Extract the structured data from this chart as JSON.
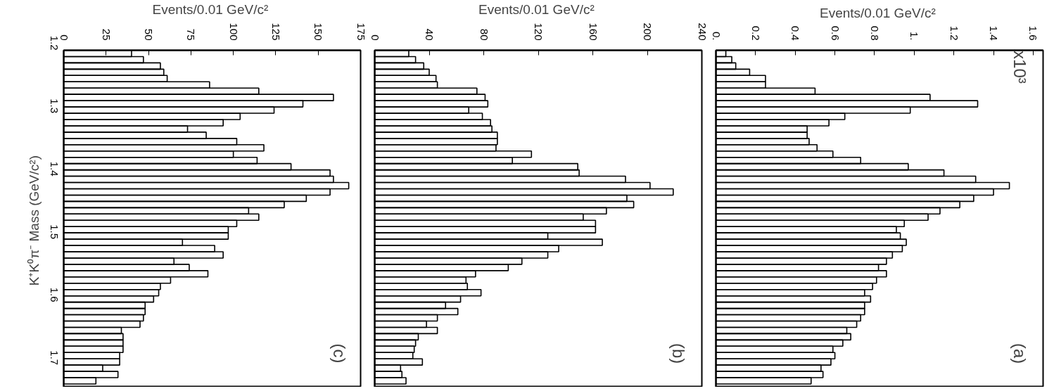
{
  "chart_data": [
    {
      "type": "histogram",
      "orientation": "horizontal",
      "xlabel": "Events/0.01  GeV/c²",
      "ylabel": "K⁺K⁰π⁻ Mass  (GeV/c²)",
      "annotations": [
        "(c)"
      ],
      "bins": [
        1.2,
        1.21,
        1.22,
        1.23,
        1.24,
        1.25,
        1.26,
        1.27,
        1.28,
        1.29,
        1.3,
        1.31,
        1.32,
        1.33,
        1.34,
        1.35,
        1.36,
        1.37,
        1.38,
        1.39,
        1.4,
        1.41,
        1.42,
        1.43,
        1.44,
        1.45,
        1.46,
        1.47,
        1.48,
        1.49,
        1.5,
        1.51,
        1.52,
        1.53,
        1.54,
        1.55,
        1.56,
        1.57,
        1.58,
        1.59,
        1.6,
        1.61,
        1.62,
        1.63,
        1.64,
        1.65,
        1.66,
        1.67,
        1.68,
        1.69,
        1.7,
        1.71,
        1.72,
        1.73
      ],
      "values": [
        40,
        47,
        57,
        59,
        61,
        86,
        115,
        159,
        141,
        124,
        104,
        94,
        73,
        84,
        102,
        118,
        100,
        114,
        134,
        157,
        159,
        168,
        157,
        143,
        130,
        109,
        115,
        102,
        97,
        97,
        70,
        89,
        94,
        65,
        74,
        85,
        63,
        57,
        56,
        53,
        48,
        48,
        47,
        45,
        34,
        35,
        35,
        35,
        33,
        33,
        23,
        32,
        19
      ],
      "xlim": [
        0,
        175
      ],
      "xticks": [
        0,
        25,
        50,
        75,
        100,
        125,
        150,
        175
      ],
      "ylim": [
        1.735,
        1.2
      ],
      "yticks": [
        1.2,
        1.3,
        1.4,
        1.5,
        1.6,
        1.7
      ]
    },
    {
      "type": "histogram",
      "orientation": "horizontal",
      "xlabel": "Events/0.01  GeV/c²",
      "annotations": [
        "(b)"
      ],
      "tick_labels": "x",
      "bins": [
        1.2,
        1.21,
        1.22,
        1.23,
        1.24,
        1.25,
        1.26,
        1.27,
        1.28,
        1.29,
        1.3,
        1.31,
        1.32,
        1.33,
        1.34,
        1.35,
        1.36,
        1.37,
        1.38,
        1.39,
        1.4,
        1.41,
        1.42,
        1.43,
        1.44,
        1.45,
        1.46,
        1.47,
        1.48,
        1.49,
        1.5,
        1.51,
        1.52,
        1.53,
        1.54,
        1.55,
        1.56,
        1.57,
        1.58,
        1.59,
        1.6,
        1.61,
        1.62,
        1.63,
        1.64,
        1.65,
        1.66,
        1.67,
        1.68,
        1.69,
        1.7,
        1.71,
        1.72,
        1.73
      ],
      "values": [
        25,
        30,
        36,
        40,
        45,
        46,
        75,
        81,
        83,
        69,
        79,
        85,
        86,
        90,
        90,
        89,
        115,
        101,
        149,
        150,
        184,
        202,
        219,
        185,
        190,
        170,
        153,
        162,
        162,
        127,
        167,
        135,
        127,
        108,
        98,
        74,
        67,
        68,
        78,
        63,
        52,
        61,
        46,
        38,
        46,
        32,
        30,
        29,
        28,
        35,
        19,
        20,
        23
      ],
      "xlim": [
        0,
        240
      ],
      "xticks": [
        0,
        40,
        80,
        120,
        160,
        200,
        240
      ],
      "ylim": [
        1.735,
        1.2
      ],
      "yticks": [
        1.2,
        1.3,
        1.4,
        1.5,
        1.6,
        1.7
      ]
    },
    {
      "type": "histogram",
      "orientation": "horizontal",
      "xlabel": "Events/0.01  GeV/c²",
      "annotations": [
        "(a)",
        "x10³"
      ],
      "tick_labels": "x",
      "bins": [
        1.2,
        1.21,
        1.22,
        1.23,
        1.24,
        1.25,
        1.26,
        1.27,
        1.28,
        1.29,
        1.3,
        1.31,
        1.32,
        1.33,
        1.34,
        1.35,
        1.36,
        1.37,
        1.38,
        1.39,
        1.4,
        1.41,
        1.42,
        1.43,
        1.44,
        1.45,
        1.46,
        1.47,
        1.48,
        1.49,
        1.5,
        1.51,
        1.52,
        1.53,
        1.54,
        1.55,
        1.56,
        1.57,
        1.58,
        1.59,
        1.6,
        1.61,
        1.62,
        1.63,
        1.64,
        1.65,
        1.66,
        1.67,
        1.68,
        1.69,
        1.7,
        1.71,
        1.72,
        1.73
      ],
      "values": [
        0.05,
        0.08,
        0.1,
        0.17,
        0.25,
        0.25,
        0.5,
        1.08,
        1.32,
        0.98,
        0.65,
        0.57,
        0.46,
        0.46,
        0.47,
        0.51,
        0.59,
        0.73,
        0.97,
        1.15,
        1.31,
        1.48,
        1.4,
        1.3,
        1.23,
        1.13,
        1.07,
        0.95,
        0.91,
        0.93,
        0.96,
        0.94,
        0.89,
        0.86,
        0.82,
        0.86,
        0.81,
        0.79,
        0.75,
        0.78,
        0.75,
        0.75,
        0.73,
        0.71,
        0.66,
        0.68,
        0.64,
        0.59,
        0.6,
        0.58,
        0.53,
        0.54,
        0.48
      ],
      "xlim": [
        0,
        1.65
      ],
      "xticks": [
        {
          "value": 0,
          "label": "0."
        },
        0.2,
        0.4,
        0.6,
        0.8,
        {
          "value": 1,
          "label": "1."
        },
        1.2,
        1.4,
        1.6
      ],
      "ylim": [
        1.735,
        1.2
      ],
      "yticks": [
        1.2,
        1.3,
        1.4,
        1.5,
        1.6,
        1.7
      ]
    }
  ]
}
